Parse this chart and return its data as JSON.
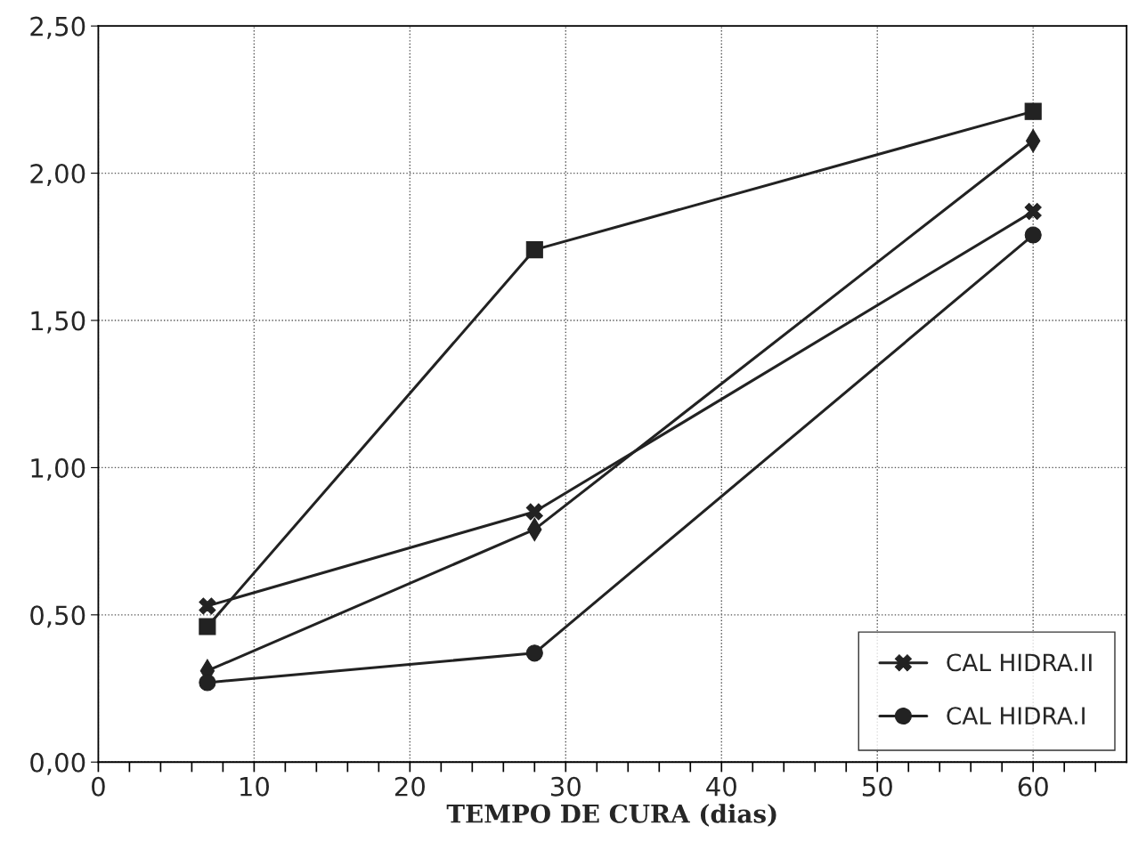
{
  "chart_data": {
    "type": "line",
    "xlabel": "TEMPO DE CURA (dias)",
    "xlim": [
      0,
      66
    ],
    "ylim": [
      0,
      2.5
    ],
    "xticks": [
      0,
      {
        "value": 2,
        "label": null
      },
      {
        "value": 4,
        "label": null
      },
      {
        "value": 6,
        "label": null
      },
      {
        "value": 8,
        "label": null
      },
      10,
      {
        "value": 12,
        "label": null
      },
      {
        "value": 14,
        "label": null
      },
      {
        "value": 16,
        "label": null
      },
      {
        "value": 18,
        "label": null
      },
      20,
      {
        "value": 22,
        "label": null
      },
      {
        "value": 24,
        "label": null
      },
      {
        "value": 26,
        "label": null
      },
      {
        "value": 28,
        "label": null
      },
      30,
      {
        "value": 32,
        "label": null
      },
      {
        "value": 34,
        "label": null
      },
      {
        "value": 36,
        "label": null
      },
      {
        "value": 38,
        "label": null
      },
      40,
      {
        "value": 42,
        "label": null
      },
      {
        "value": 44,
        "label": null
      },
      {
        "value": 46,
        "label": null
      },
      {
        "value": 48,
        "label": null
      },
      50,
      {
        "value": 52,
        "label": null
      },
      {
        "value": 54,
        "label": null
      },
      {
        "value": 56,
        "label": null
      },
      {
        "value": 58,
        "label": null
      },
      60,
      {
        "value": 62,
        "label": null
      },
      {
        "value": 64,
        "label": null
      }
    ],
    "yticks": [
      {
        "value": 0,
        "label": "0,00"
      },
      {
        "value": 0.5,
        "label": "0,50"
      },
      {
        "value": 1,
        "label": "1,00"
      },
      {
        "value": 1.5,
        "label": "1,50"
      },
      {
        "value": 2,
        "label": "2,00"
      },
      {
        "value": 2.5,
        "label": "2,50"
      }
    ],
    "grid": true,
    "legend": "bottom right",
    "line_style": "solid",
    "series": [
      {
        "color": "#222222",
        "marker": "diamond",
        "x": [
          7,
          28,
          60
        ],
        "values": [
          0.31,
          0.79,
          2.11
        ]
      },
      {
        "name": "CAL HIDRA.II",
        "color": "#222222",
        "marker": "cross",
        "x": [
          7,
          28,
          60
        ],
        "values": [
          0.53,
          0.85,
          1.87
        ]
      },
      {
        "name": "CAL HIDRA.I",
        "color": "#222222",
        "marker": "circle",
        "x": [
          7,
          28,
          60
        ],
        "values": [
          0.27,
          0.37,
          1.79
        ]
      },
      {
        "color": "#222222",
        "marker": "square",
        "x": [
          7,
          28,
          60
        ],
        "values": [
          0.46,
          1.74,
          2.21
        ]
      }
    ]
  }
}
